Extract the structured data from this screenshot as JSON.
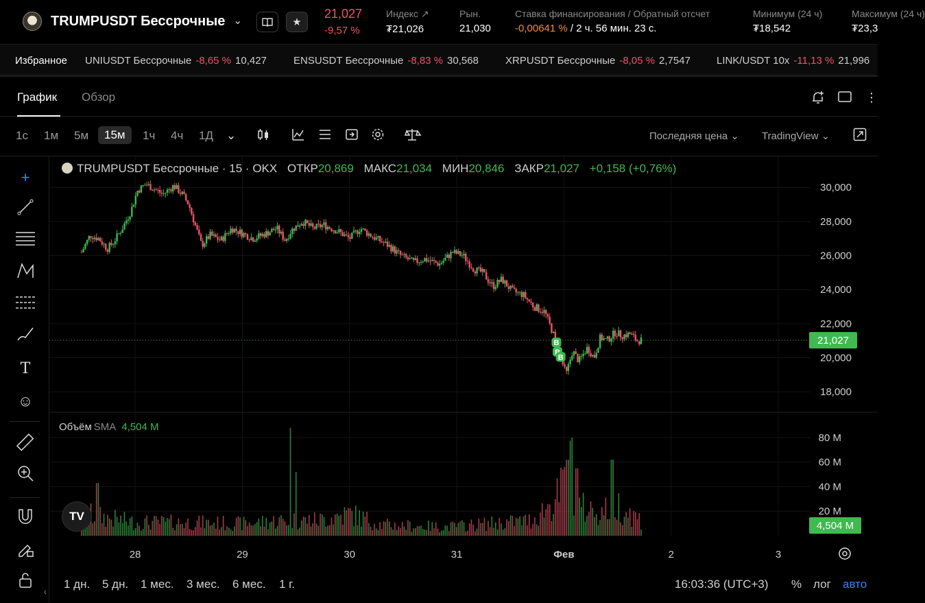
{
  "header": {
    "symbol": "TRUMPUSDT Бессрочные",
    "price": "21,027",
    "change": "-9,57 %",
    "stats": [
      {
        "label": "Индекс",
        "value": "₮21,026"
      },
      {
        "label": "Рын.",
        "value": "21,030"
      },
      {
        "label": "Ставка финансирования / Обратный отсчет",
        "value_neg": "-0,00641 %",
        "value": " / 2 ч. 56 мин. 23 с."
      },
      {
        "label": "Минимум (24 ч)",
        "value": "₮18,542"
      },
      {
        "label": "Максимум (24 ч)",
        "value": "₮23,3"
      }
    ]
  },
  "favorites": {
    "title": "Избранное",
    "items": [
      {
        "name": "UNIUSDT Бессрочные",
        "change": "-8,65 %",
        "price": "10,427"
      },
      {
        "name": "ENSUSDT Бессрочные",
        "change": "-8,83 %",
        "price": "30,568"
      },
      {
        "name": "XRPUSDT Бессрочные",
        "change": "-8,05 %",
        "price": "2,7547"
      },
      {
        "name": "LINK/USDT 10x",
        "change": "-11,13 %",
        "price": "21,996"
      }
    ]
  },
  "tabs": [
    {
      "label": "График"
    },
    {
      "label": "Обзор"
    }
  ],
  "timeframes": [
    "1с",
    "1м",
    "5м",
    "15м",
    "1ч",
    "4ч",
    "1Д"
  ],
  "toolbar": {
    "price_type": "Последняя цена",
    "chart_lib": "TradingView"
  },
  "legend": {
    "title": "TRUMPUSDT Бессрочные · 15 · OKX",
    "open_label": "ОТКР",
    "open": "20,869",
    "high_label": "МАКС",
    "high": "21,034",
    "low_label": "МИН",
    "low": "20,846",
    "close_label": "ЗАКР",
    "close": "21,027",
    "change": "+0,158 (+0,76%)"
  },
  "volume_legend": {
    "label": "Объём",
    "sma": "SMA",
    "value": "4,504 M"
  },
  "colors": {
    "up": "#3fb950",
    "down": "#f0536a",
    "bg": "#000000",
    "accent": "#3b82f6"
  },
  "chart_data": {
    "type": "candlestick",
    "price_axis": {
      "ticks": [
        "30,000",
        "28,000",
        "26,000",
        "24,000",
        "22,000",
        "20,000",
        "18,000"
      ],
      "tick_values": [
        30,
        28,
        26,
        24,
        22,
        20,
        18
      ],
      "ylim": [
        17.0,
        31.5
      ]
    },
    "volume_axis": {
      "ticks": [
        "80 M",
        "60 M",
        "40 M",
        "20 M"
      ],
      "tick_values": [
        80,
        60,
        40,
        20
      ],
      "ylim": [
        0,
        95
      ]
    },
    "x_ticks": [
      "28",
      "29",
      "30",
      "31",
      "Фев",
      "2",
      "3"
    ],
    "x_tick_positions": [
      0.5,
      1.5,
      2.5,
      3.5,
      4.5,
      5.5,
      6.5
    ],
    "xlim": [
      -0.3,
      6.8
    ],
    "last_price": "21,027",
    "last_price_value": 21.027,
    "last_volume": "4,504 M",
    "last_volume_value": 4.504,
    "markers": [
      "B",
      "B",
      "B"
    ],
    "price_path": [
      [
        0.0,
        26.2
      ],
      [
        0.08,
        27.2
      ],
      [
        0.16,
        27.0
      ],
      [
        0.24,
        26.4
      ],
      [
        0.3,
        26.8
      ],
      [
        0.38,
        27.6
      ],
      [
        0.46,
        28.6
      ],
      [
        0.52,
        29.8
      ],
      [
        0.6,
        30.2
      ],
      [
        0.68,
        29.9
      ],
      [
        0.76,
        29.6
      ],
      [
        0.86,
        30.1
      ],
      [
        0.94,
        29.6
      ],
      [
        1.0,
        29.0
      ],
      [
        1.06,
        27.8
      ],
      [
        1.12,
        26.6
      ],
      [
        1.2,
        27.2
      ],
      [
        1.3,
        26.9
      ],
      [
        1.4,
        27.6
      ],
      [
        1.5,
        27.3
      ],
      [
        1.6,
        27.0
      ],
      [
        1.72,
        27.3
      ],
      [
        1.82,
        27.6
      ],
      [
        1.9,
        26.9
      ],
      [
        1.96,
        27.5
      ],
      [
        2.06,
        28.0
      ],
      [
        2.16,
        27.6
      ],
      [
        2.26,
        27.8
      ],
      [
        2.4,
        27.4
      ],
      [
        2.5,
        27.0
      ],
      [
        2.6,
        27.6
      ],
      [
        2.72,
        27.1
      ],
      [
        2.86,
        26.6
      ],
      [
        2.98,
        26.0
      ],
      [
        3.1,
        25.6
      ],
      [
        3.2,
        25.8
      ],
      [
        3.34,
        25.5
      ],
      [
        3.46,
        26.2
      ],
      [
        3.56,
        26.0
      ],
      [
        3.66,
        25.2
      ],
      [
        3.74,
        25.0
      ],
      [
        3.84,
        24.2
      ],
      [
        3.92,
        24.6
      ],
      [
        4.02,
        23.9
      ],
      [
        4.12,
        23.7
      ],
      [
        4.22,
        23.0
      ],
      [
        4.32,
        22.7
      ],
      [
        4.4,
        21.4
      ],
      [
        4.46,
        20.2
      ],
      [
        4.52,
        19.0
      ],
      [
        4.58,
        20.4
      ],
      [
        4.64,
        19.8
      ],
      [
        4.72,
        20.6
      ],
      [
        4.78,
        20.0
      ],
      [
        4.84,
        21.2
      ],
      [
        4.9,
        21.0
      ],
      [
        4.98,
        21.5
      ],
      [
        5.04,
        21.3
      ],
      [
        5.12,
        21.4
      ],
      [
        5.18,
        21.0
      ],
      [
        5.22,
        21.03
      ]
    ],
    "volume_profile": [
      [
        0.0,
        20
      ],
      [
        0.5,
        12
      ],
      [
        1.0,
        12
      ],
      [
        1.5,
        11
      ],
      [
        1.9,
        14
      ],
      [
        2.2,
        14
      ],
      [
        2.5,
        20
      ],
      [
        2.8,
        10
      ],
      [
        3.4,
        8
      ],
      [
        3.8,
        11
      ],
      [
        4.2,
        14
      ],
      [
        4.45,
        35
      ],
      [
        4.55,
        60
      ],
      [
        4.65,
        25
      ],
      [
        4.85,
        22
      ],
      [
        5.0,
        28
      ],
      [
        5.22,
        14
      ]
    ],
    "volume_spikes": [
      [
        1.95,
        88
      ],
      [
        2.0,
        52
      ],
      [
        4.53,
        62
      ],
      [
        4.58,
        80
      ],
      [
        4.62,
        55
      ],
      [
        4.95,
        62
      ],
      [
        0.15,
        43
      ]
    ]
  },
  "bottom": {
    "ranges": [
      "1 дн.",
      "5 дн.",
      "1 мес.",
      "3 мес.",
      "6 мес.",
      "1 г."
    ],
    "clock": "16:03:36 (UTC+3)",
    "opts": [
      "%",
      "лог",
      "авто"
    ]
  }
}
